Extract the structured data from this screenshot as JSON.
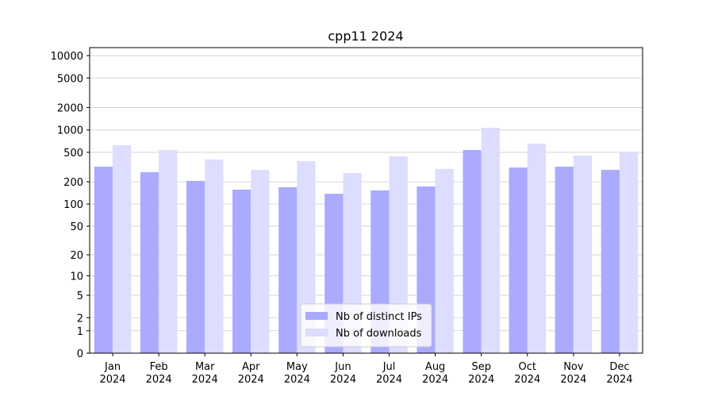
{
  "chart_data": {
    "type": "bar",
    "title": "cpp11 2024",
    "categories": [
      "Jan\n2024",
      "Feb\n2024",
      "Mar\n2024",
      "Apr\n2024",
      "May\n2024",
      "Jun\n2024",
      "Jul\n2024",
      "Aug\n2024",
      "Sep\n2024",
      "Oct\n2024",
      "Nov\n2024",
      "Dec\n2024"
    ],
    "series": [
      {
        "name": "Nb of distinct IPs",
        "color": "#aaaaff",
        "values": [
          320,
          270,
          206,
          157,
          169,
          138,
          153,
          173,
          537,
          312,
          320,
          290
        ]
      },
      {
        "name": "Nb of downloads",
        "color": "#ddddff",
        "values": [
          623,
          537,
          400,
          290,
          380,
          263,
          441,
          298,
          1070,
          654,
          452,
          499
        ]
      }
    ],
    "yscale": "log1p",
    "ylim": [
      0,
      12800
    ],
    "yticks": [
      0,
      1,
      2,
      5,
      10,
      20,
      50,
      100,
      200,
      500,
      1000,
      2000,
      5000,
      10000
    ],
    "grid": true,
    "legend": "lower center"
  }
}
